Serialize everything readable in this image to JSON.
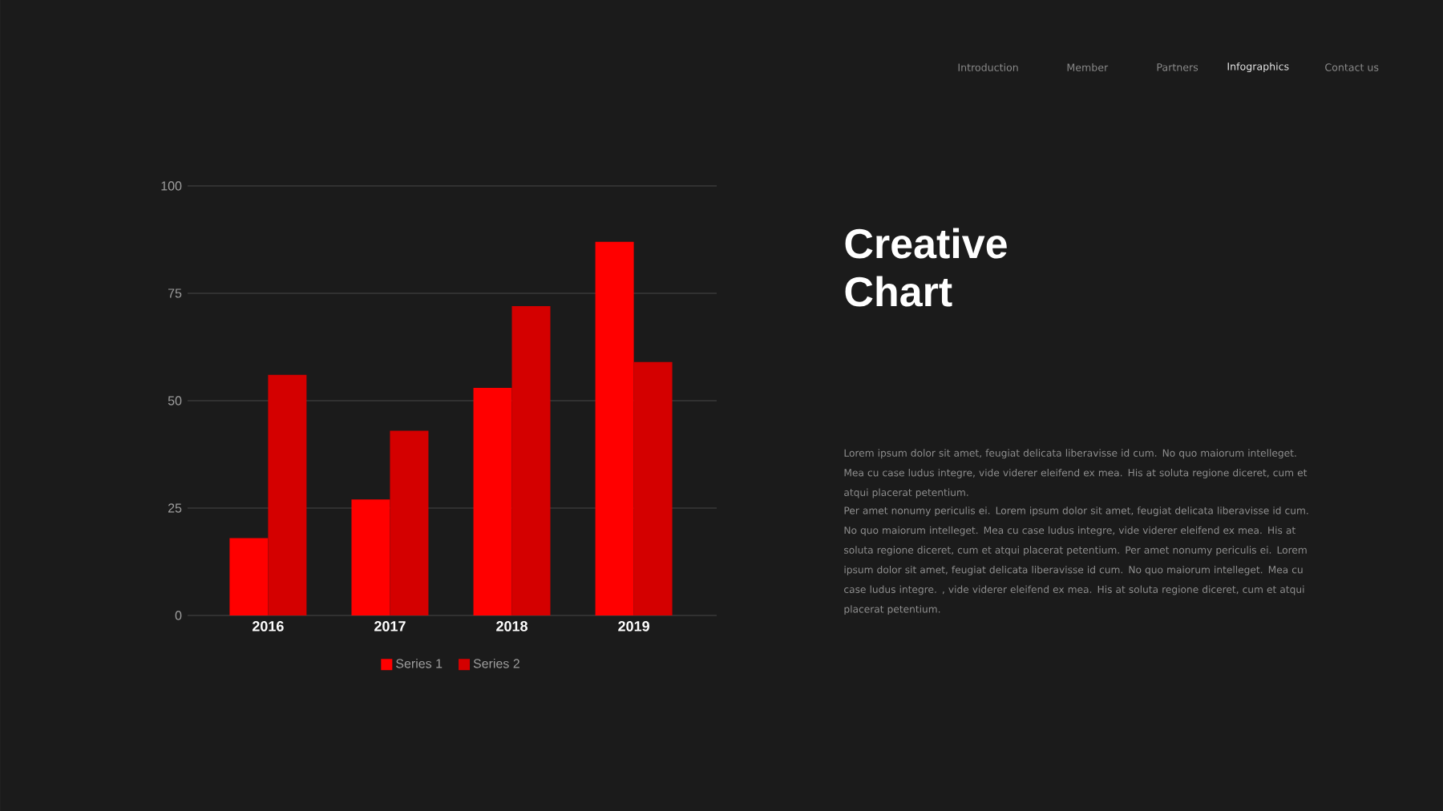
{
  "chart_data": {
    "type": "bar",
    "title": "Creative Chart",
    "categories": [
      "2016",
      "2017",
      "2018",
      "2019"
    ],
    "series": [
      {
        "name": "Series 1",
        "color": "#ff0000",
        "values": [
          18,
          27,
          53,
          87
        ]
      },
      {
        "name": "Series 2",
        "color": "#d40000",
        "values": [
          56,
          43,
          72,
          59
        ]
      }
    ],
    "ylim": [
      0,
      100
    ],
    "yticks": [
      0,
      25,
      50,
      75,
      100
    ],
    "grid": "y",
    "legend": "bottom",
    "annotations": [
      "Introduction",
      "Member",
      "Partners",
      "Infographics",
      "Contact us",
      "Lorem ipsum dolor sit amet, feugiat delicata liberavisse id cum. No quo maiorum intelleget. Mea cu case ludus integre, vide viderer eleifend ex mea. His at soluta regione diceret, cum et atqui placerat petentium.",
      "Per amet nonumy periculis ei. Lorem ipsum dolor sit amet, feugiat delicata liberavisse id cum. No quo maiorum intelleget. Mea cu case ludus integre, vide viderer eleifend ex mea. His at soluta regione diceret, cum et atqui placerat petentium. Per amet nonumy periculis ei. Lorem ipsum dolor sit amet, feugiat delicata liberavisse id cum. No quo maiorum intelleget. Mea cu case ludus integre. , vide viderer eleifend ex mea. His at soluta regione diceret, cum et atqui placerat petentium."
    ]
  }
}
